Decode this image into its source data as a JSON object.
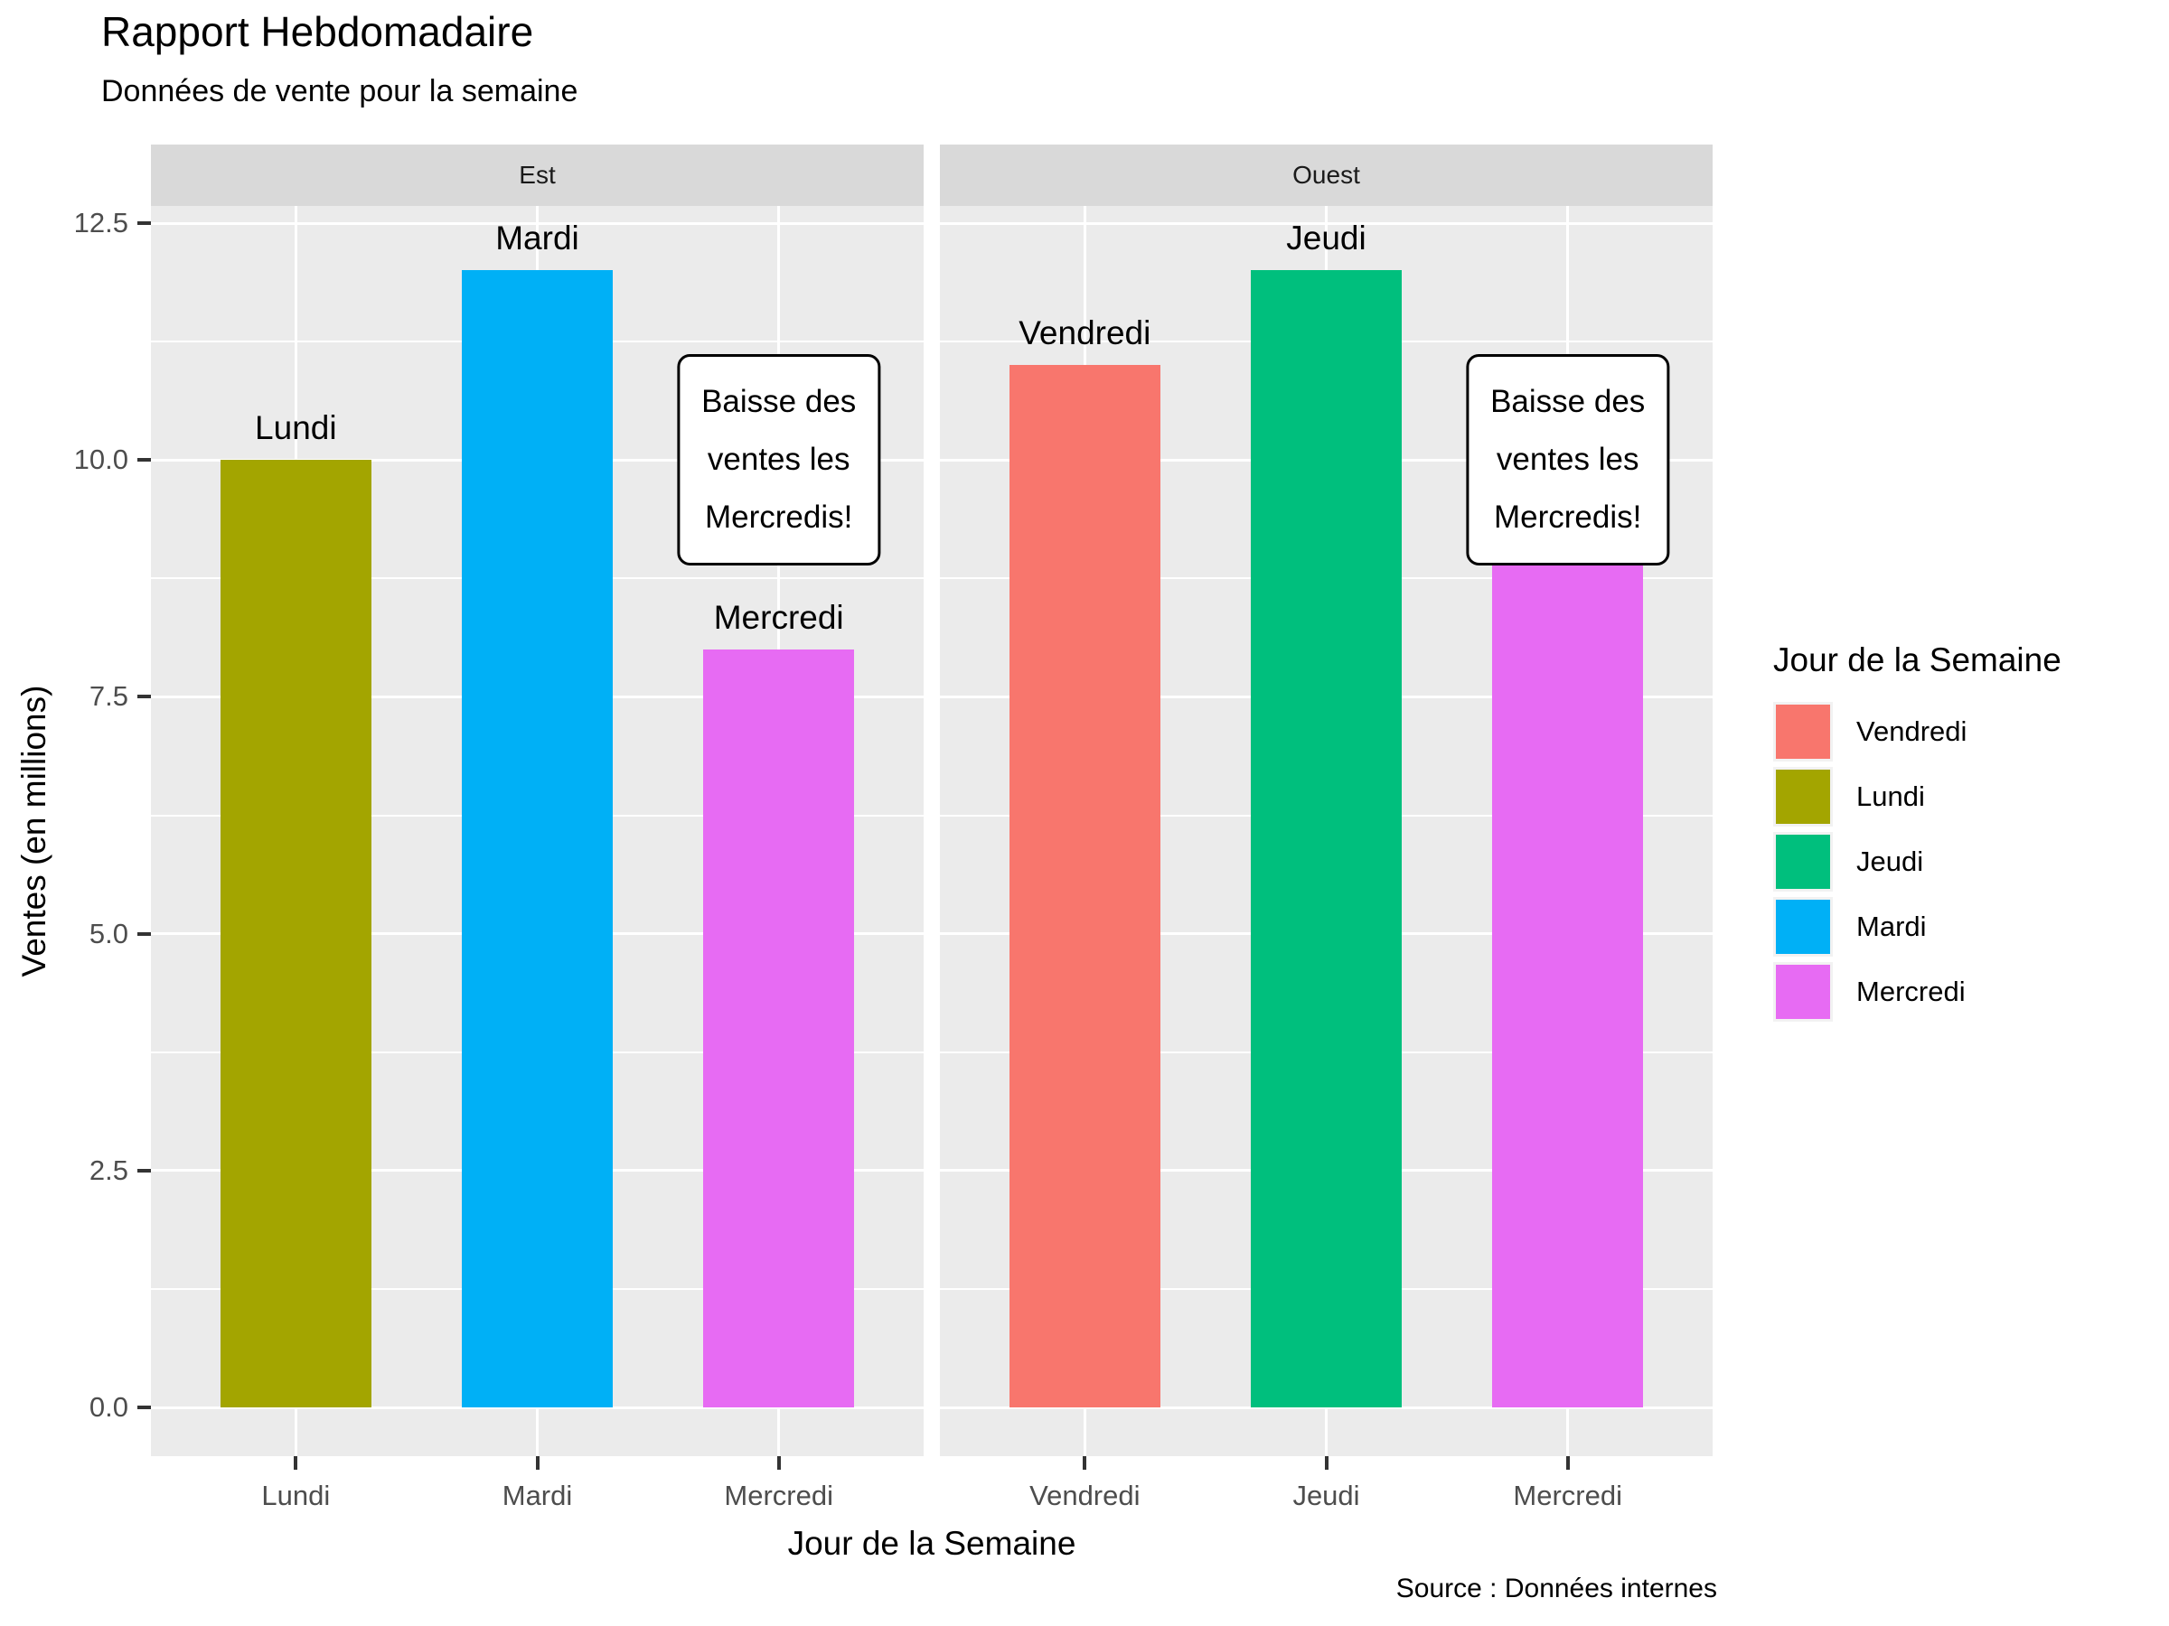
{
  "title": "Rapport Hebdomadaire",
  "subtitle": "Données de vente pour la semaine",
  "caption": "Source : Données internes",
  "axes": {
    "x_title": "Jour de la Semaine",
    "y_title": "Ventes (en millions)"
  },
  "legend": {
    "title": "Jour de la Semaine",
    "position": "right",
    "items": [
      {
        "label": "Vendredi",
        "color": "#F8766D"
      },
      {
        "label": "Lundi",
        "color": "#A3A500"
      },
      {
        "label": "Jeudi",
        "color": "#00BF7D"
      },
      {
        "label": "Mardi",
        "color": "#00B0F6"
      },
      {
        "label": "Mercredi",
        "color": "#E76BF3"
      }
    ]
  },
  "annotation": {
    "lines": [
      "Baisse des",
      "ventes les",
      "Mercredis!"
    ]
  },
  "chart_data": {
    "type": "bar",
    "title": "Rapport Hebdomadaire",
    "subtitle": "Données de vente pour la semaine",
    "xlabel": "Jour de la Semaine",
    "ylabel": "Ventes (en millions)",
    "caption": "Source : Données internes",
    "ylim": [
      0,
      12.5
    ],
    "grid": true,
    "legend_position": "right",
    "bar_labels_above": true,
    "facets": [
      {
        "name": "Est",
        "categories": [
          "Lundi",
          "Mardi",
          "Mercredi"
        ],
        "values": [
          10,
          12,
          8
        ],
        "colors": [
          "#A3A500",
          "#00B0F6",
          "#E76BF3"
        ],
        "annotation": {
          "text": "Baisse des ventes les Mercredis!",
          "category_index": 2,
          "y": 10
        }
      },
      {
        "name": "Ouest",
        "categories": [
          "Vendredi",
          "Jeudi",
          "Mercredi"
        ],
        "values": [
          11,
          12,
          9
        ],
        "colors": [
          "#F8766D",
          "#00BF7D",
          "#E76BF3"
        ],
        "annotation": {
          "text": "Baisse des ventes les Mercredis!",
          "category_index": 2,
          "y": 10
        }
      }
    ],
    "y_ticks": [
      {
        "label": "0.0",
        "value": 0
      },
      {
        "label": "2.5",
        "value": 2.5
      },
      {
        "label": "5.0",
        "value": 5
      },
      {
        "label": "7.5",
        "value": 7.5
      },
      {
        "label": "10.0",
        "value": 10
      },
      {
        "label": "12.5",
        "value": 12.5
      }
    ],
    "y_minor": [
      1.25,
      3.75,
      6.25,
      8.75,
      11.25
    ]
  },
  "colors": {
    "background": "#FFFFFF",
    "panel_bg": "#EBEBEB",
    "strip_bg": "#D9D9D9",
    "grid": "#FFFFFF",
    "tick_text": "#4D4D4D",
    "strip_text": "#1A1A1A",
    "text": "#000000"
  }
}
